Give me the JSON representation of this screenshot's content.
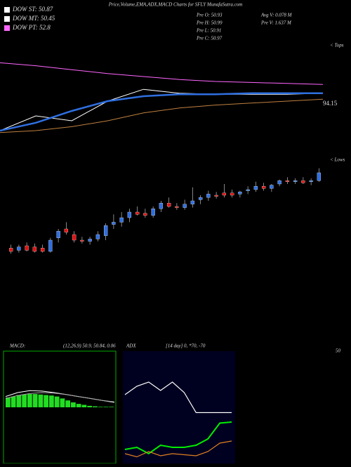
{
  "chart_data": {
    "type": "candlestick",
    "title": "Price,Volume,EMA,ADX,MACD Charts for SFLY MunafaSutra.com",
    "legend": [
      {
        "label": "DOW ST: 50.87",
        "color": "#ffffff"
      },
      {
        "label": "DOW MT: 50.45",
        "color": "#ffffff"
      },
      {
        "label": "DOW PT: 52.8",
        "color": "#ff66ff"
      }
    ],
    "info": [
      "Pre  O: 50.93",
      "Pre  H: 50.99",
      "Pre  L: 50.91",
      "Pre  C: 50.97"
    ],
    "info2": [
      "Avg V: 0.078 M",
      "Pre  V: 1.637 M"
    ],
    "tops_label": "< Tops",
    "lows_label": "< Lows",
    "level_label": "94.15",
    "ylim": [
      43,
      53
    ],
    "candles": [
      [
        45.3,
        45.6,
        44.8,
        45.0
      ],
      [
        45.1,
        45.6,
        44.9,
        45.4
      ],
      [
        45.5,
        45.8,
        45.0,
        45.1
      ],
      [
        45.4,
        45.7,
        44.9,
        45.0
      ],
      [
        45.3,
        45.6,
        44.9,
        45.0
      ],
      [
        45.0,
        46.2,
        44.9,
        46.0
      ],
      [
        46.2,
        47.0,
        45.8,
        46.8
      ],
      [
        47.0,
        47.6,
        46.5,
        46.7
      ],
      [
        46.5,
        46.8,
        45.8,
        46.0
      ],
      [
        46.0,
        46.3,
        45.7,
        45.9
      ],
      [
        45.9,
        46.3,
        45.6,
        46.1
      ],
      [
        46.1,
        46.8,
        45.9,
        46.5
      ],
      [
        46.4,
        47.5,
        46.0,
        47.3
      ],
      [
        47.4,
        48.3,
        47.0,
        47.6
      ],
      [
        47.6,
        48.5,
        47.2,
        48.0
      ],
      [
        48.0,
        48.8,
        47.6,
        48.5
      ],
      [
        48.5,
        49.0,
        48.2,
        48.3
      ],
      [
        48.4,
        48.8,
        48.0,
        48.2
      ],
      [
        48.2,
        49.0,
        48.0,
        48.8
      ],
      [
        48.8,
        49.5,
        48.5,
        49.3
      ],
      [
        49.3,
        49.8,
        48.9,
        49.0
      ],
      [
        49.0,
        49.3,
        48.7,
        48.9
      ],
      [
        48.9,
        49.6,
        48.7,
        49.2
      ],
      [
        49.2,
        50.7,
        48.9,
        49.5
      ],
      [
        49.6,
        50.0,
        49.2,
        49.8
      ],
      [
        49.8,
        50.4,
        49.5,
        50.1
      ],
      [
        50.0,
        50.3,
        49.7,
        49.9
      ],
      [
        50.2,
        51.0,
        49.8,
        50.0
      ],
      [
        50.2,
        50.5,
        49.8,
        50.0
      ],
      [
        50.1,
        50.4,
        49.8,
        50.3
      ],
      [
        50.4,
        50.8,
        50.1,
        50.5
      ],
      [
        50.5,
        51.2,
        50.3,
        50.8
      ],
      [
        50.8,
        51.1,
        50.4,
        50.6
      ],
      [
        50.6,
        51.0,
        50.3,
        50.9
      ],
      [
        51.0,
        51.4,
        50.8,
        51.3
      ],
      [
        51.3,
        51.6,
        51.0,
        51.2
      ],
      [
        51.2,
        51.5,
        51.0,
        51.3
      ],
      [
        51.3,
        51.6,
        51.0,
        51.1
      ],
      [
        51.2,
        51.5,
        50.9,
        51.3
      ],
      [
        51.3,
        52.4,
        51.2,
        52.0
      ]
    ],
    "ema_ylim": [
      0,
      100
    ],
    "ema_series": [
      {
        "color": "#ff66ff",
        "values": [
          79,
          76,
          72,
          68,
          65,
          62,
          60,
          59,
          58,
          57
        ]
      },
      {
        "color": "#ffffff",
        "values": [
          10,
          25,
          20,
          40,
          52,
          48,
          47,
          47,
          47,
          48
        ]
      },
      {
        "color": "#2f6fe0",
        "values": [
          10,
          18,
          30,
          40,
          45,
          47,
          47,
          48,
          48,
          48
        ]
      },
      {
        "color": "#c08040",
        "values": [
          8,
          10,
          14,
          20,
          28,
          33,
          36,
          38,
          40,
          42
        ]
      }
    ],
    "macd_label": "MACD:",
    "macd_text": "(12,26,9) 50.9, 50.84, 0.06",
    "adx_label": "ADX",
    "adx_text": "[14 day] 0, *70, -70",
    "adx_level": "50",
    "macd_ylim": [
      0,
      100
    ],
    "macd_hist": [
      20,
      22,
      25,
      26,
      27,
      27,
      26,
      25,
      24,
      22,
      18,
      14,
      10,
      7,
      5,
      3,
      2,
      1,
      1,
      1
    ],
    "macd_lines": [
      {
        "color": "#ffffff",
        "values": [
          22,
          30,
          34,
          33,
          30,
          26,
          22,
          18,
          14,
          10
        ]
      },
      {
        "color": "#aaaaaa",
        "values": [
          18,
          24,
          28,
          30,
          29,
          26,
          22,
          18,
          14,
          11
        ]
      }
    ],
    "adx_ylim": [
      0,
      100
    ],
    "adx_lines": [
      {
        "color": "#ffffff",
        "values": [
          62,
          70,
          74,
          66,
          74,
          64,
          45,
          45,
          45,
          45
        ]
      },
      {
        "color": "#00ee00",
        "values": [
          10,
          12,
          6,
          14,
          12,
          12,
          14,
          20,
          35,
          36
        ]
      },
      {
        "color": "#e08020",
        "values": [
          6,
          3,
          8,
          4,
          6,
          5,
          4,
          8,
          16,
          18
        ]
      }
    ]
  }
}
